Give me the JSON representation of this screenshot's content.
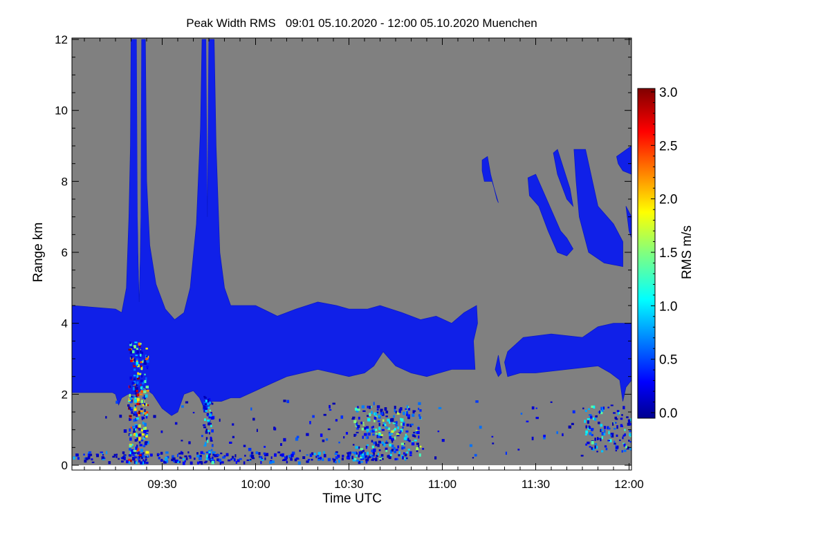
{
  "chart_data": {
    "type": "heatmap",
    "title": "Peak Width RMS   09:01 05.10.2020 - 12:00 05.10.2020 Muenchen",
    "xlabel": "Time UTC",
    "ylabel": "Range km",
    "x_units": "minutes after 09:00 UTC",
    "xlim": [
      1,
      180.8
    ],
    "ylim": [
      -0.15,
      12.05
    ],
    "data_ylim": [
      0,
      12
    ],
    "x_ticks": [
      {
        "value": 30,
        "label": "09:30"
      },
      {
        "value": 60,
        "label": "10:00"
      },
      {
        "value": 90,
        "label": "10:30"
      },
      {
        "value": 120,
        "label": "11:00"
      },
      {
        "value": 150,
        "label": "11:30"
      },
      {
        "value": 180,
        "label": "12:00"
      }
    ],
    "y_ticks": [
      {
        "value": 0,
        "label": "0"
      },
      {
        "value": 2,
        "label": "2"
      },
      {
        "value": 4,
        "label": "4"
      },
      {
        "value": 6,
        "label": "6"
      },
      {
        "value": 8,
        "label": "8"
      },
      {
        "value": 10,
        "label": "10"
      },
      {
        "value": 12,
        "label": "12"
      }
    ],
    "background_color": "#808080",
    "colorbar": {
      "label": "RMS m/s",
      "range": [
        0,
        3
      ],
      "colormap": "jet",
      "ticks": [
        {
          "value": 0.0,
          "label": "0.0"
        },
        {
          "value": 0.5,
          "label": "0.5"
        },
        {
          "value": 1.0,
          "label": "1.0"
        },
        {
          "value": 1.5,
          "label": "1.5"
        },
        {
          "value": 2.0,
          "label": "2.0"
        },
        {
          "value": 2.5,
          "label": "2.5"
        },
        {
          "value": 3.0,
          "label": "3.0"
        }
      ]
    },
    "regions": [
      {
        "name": "lower-cloud-layer",
        "value": 0.3,
        "points": [
          [
            1,
            2.05
          ],
          [
            1,
            4.5
          ],
          [
            15,
            4.4
          ],
          [
            17,
            4.3
          ],
          [
            18.5,
            5
          ],
          [
            19.3,
            7
          ],
          [
            19.8,
            9
          ],
          [
            20,
            12
          ],
          [
            21.8,
            12
          ],
          [
            22.2,
            6
          ],
          [
            22.6,
            4.6
          ],
          [
            23,
            6
          ],
          [
            23.3,
            12
          ],
          [
            24.6,
            12
          ],
          [
            25,
            8
          ],
          [
            26,
            6.2
          ],
          [
            28,
            5.1
          ],
          [
            31,
            4.4
          ],
          [
            34,
            4.1
          ],
          [
            37,
            4.3
          ],
          [
            39,
            5
          ],
          [
            41,
            6.8
          ],
          [
            42.3,
            9.5
          ],
          [
            42.8,
            12
          ],
          [
            44.2,
            12
          ],
          [
            44.5,
            7
          ],
          [
            44.8,
            12
          ],
          [
            46.7,
            12
          ],
          [
            47.3,
            9
          ],
          [
            48.5,
            6
          ],
          [
            50,
            5
          ],
          [
            52,
            4.5
          ],
          [
            60,
            4.5
          ],
          [
            67,
            4.2
          ],
          [
            73,
            4.4
          ],
          [
            80,
            4.6
          ],
          [
            86,
            4.5
          ],
          [
            90,
            4.4
          ],
          [
            96,
            4.4
          ],
          [
            100,
            4.5
          ],
          [
            107,
            4.3
          ],
          [
            113,
            4.1
          ],
          [
            118,
            4.2
          ],
          [
            123,
            4.0
          ],
          [
            127,
            4.3
          ],
          [
            131,
            4.5
          ],
          [
            131.3,
            4.0
          ],
          [
            130,
            3.5
          ],
          [
            130.5,
            2.7
          ],
          [
            123,
            2.7
          ],
          [
            115,
            2.5
          ],
          [
            110,
            2.6
          ],
          [
            105,
            2.8
          ],
          [
            101,
            3.2
          ],
          [
            98,
            2.8
          ],
          [
            95,
            2.6
          ],
          [
            90,
            2.5
          ],
          [
            85,
            2.6
          ],
          [
            80,
            2.7
          ],
          [
            75,
            2.6
          ],
          [
            70,
            2.5
          ],
          [
            65,
            2.3
          ],
          [
            60,
            2.1
          ],
          [
            55,
            1.9
          ],
          [
            52,
            1.9
          ],
          [
            49,
            1.8
          ],
          [
            46,
            1.8
          ],
          [
            44,
            1.5
          ],
          [
            42,
            1.9
          ],
          [
            40,
            2.1
          ],
          [
            37,
            2.0
          ],
          [
            35,
            1.5
          ],
          [
            33,
            1.4
          ],
          [
            30,
            1.6
          ],
          [
            27,
            2.0
          ],
          [
            24,
            2.2
          ],
          [
            22,
            2.0
          ],
          [
            19,
            2.0
          ],
          [
            17,
            1.9
          ],
          [
            16,
            1.7
          ],
          [
            15,
            2.0
          ],
          [
            14,
            2.05
          ]
        ]
      },
      {
        "name": "gap-between-spikes-1",
        "value": null,
        "points": [
          [
            21.8,
            12.1
          ],
          [
            22.1,
            7
          ],
          [
            22.6,
            4.8
          ],
          [
            23.1,
            7
          ],
          [
            23.3,
            12.1
          ]
        ]
      },
      {
        "name": "gap-inside-u",
        "value": null,
        "points": [
          [
            25,
            12.1
          ],
          [
            25.6,
            8
          ],
          [
            26.6,
            6.2
          ],
          [
            28.5,
            5.1
          ],
          [
            31,
            4.5
          ],
          [
            34,
            4.25
          ],
          [
            37,
            4.45
          ],
          [
            38.8,
            5.2
          ],
          [
            40.6,
            6.9
          ],
          [
            41.9,
            9.5
          ],
          [
            42.4,
            12.1
          ]
        ]
      },
      {
        "name": "gap-between-spikes-2",
        "value": null,
        "points": [
          [
            44.1,
            12.1
          ],
          [
            44.5,
            7.5
          ],
          [
            44.9,
            12.1
          ]
        ]
      },
      {
        "name": "right-cloud-layer",
        "value": 0.3,
        "points": [
          [
            140,
            2.9
          ],
          [
            141,
            3.2
          ],
          [
            146,
            3.6
          ],
          [
            155,
            3.7
          ],
          [
            165,
            3.6
          ],
          [
            170,
            3.9
          ],
          [
            175,
            4.0
          ],
          [
            180.8,
            4.0
          ],
          [
            180.8,
            2.4
          ],
          [
            179,
            2.2
          ],
          [
            178,
            1.8
          ],
          [
            177,
            2.4
          ],
          [
            174,
            2.6
          ],
          [
            170,
            2.8
          ],
          [
            160,
            2.7
          ],
          [
            150,
            2.6
          ],
          [
            145,
            2.6
          ],
          [
            141,
            2.5
          ]
        ]
      },
      {
        "name": "small-blob",
        "value": 0.3,
        "points": [
          [
            137,
            2.7
          ],
          [
            138,
            3.1
          ],
          [
            139,
            2.6
          ],
          [
            138,
            2.5
          ]
        ]
      },
      {
        "name": "upper-cloud-1",
        "value": 0.25,
        "points": [
          [
            132.8,
            8.6
          ],
          [
            134.5,
            8.7
          ],
          [
            135.5,
            8.2
          ],
          [
            137.5,
            7.5
          ],
          [
            138,
            7.4
          ],
          [
            136,
            8.0
          ],
          [
            133.5,
            8.0
          ],
          [
            132.8,
            8.3
          ]
        ]
      },
      {
        "name": "upper-cloud-2",
        "value": 0.25,
        "points": [
          [
            147.5,
            8.1
          ],
          [
            150,
            8.2
          ],
          [
            155,
            7.2
          ],
          [
            158,
            6.6
          ],
          [
            160,
            6.4
          ],
          [
            162,
            6.1
          ],
          [
            160,
            5.9
          ],
          [
            157,
            6.0
          ],
          [
            154,
            6.6
          ],
          [
            151,
            7.3
          ],
          [
            148,
            7.6
          ]
        ]
      },
      {
        "name": "upper-cloud-3",
        "value": 0.25,
        "points": [
          [
            155.7,
            8.8
          ],
          [
            157,
            8.9
          ],
          [
            161,
            7.8
          ],
          [
            162,
            7.3
          ],
          [
            160,
            7.5
          ],
          [
            157,
            8.2
          ]
        ]
      },
      {
        "name": "upper-cloud-4",
        "value": 0.25,
        "points": [
          [
            162.3,
            8.9
          ],
          [
            166,
            8.9
          ],
          [
            170,
            7.3
          ],
          [
            175,
            6.8
          ],
          [
            178,
            6.3
          ],
          [
            178,
            5.6
          ],
          [
            172,
            5.7
          ],
          [
            167,
            6.0
          ],
          [
            164,
            7.0
          ],
          [
            163,
            8.0
          ]
        ]
      },
      {
        "name": "upper-cloud-5",
        "value": 0.25,
        "points": [
          [
            176,
            8.7
          ],
          [
            180.8,
            9.0
          ],
          [
            180.8,
            8.2
          ],
          [
            178,
            8.3
          ],
          [
            176.5,
            8.5
          ]
        ]
      },
      {
        "name": "upper-cloud-6",
        "value": 0.25,
        "points": [
          [
            179,
            7.3
          ],
          [
            180.8,
            7.0
          ],
          [
            180.8,
            6.4
          ],
          [
            180,
            6.6
          ]
        ]
      }
    ],
    "speckle_regions": [
      {
        "name": "near-surface-speckle",
        "t": [
          1,
          100
        ],
        "km": [
          0.1,
          0.4
        ],
        "count": 260,
        "vmax": 0.8
      },
      {
        "name": "spike-column-speckle",
        "t": [
          19,
          25
        ],
        "km": [
          0.1,
          3.5
        ],
        "count": 260,
        "vmax": 3.0
      },
      {
        "name": "spike-column-speckle-2",
        "t": [
          43,
          46
        ],
        "km": [
          0.1,
          2.0
        ],
        "count": 70,
        "vmax": 1.2
      },
      {
        "name": "convective-speckle",
        "t": [
          91,
          113
        ],
        "km": [
          0.2,
          1.7
        ],
        "count": 230,
        "vmax": 1.6
      },
      {
        "name": "right-low-speckle",
        "t": [
          165,
          180.8
        ],
        "km": [
          0.4,
          1.7
        ],
        "count": 110,
        "vmax": 1.3
      },
      {
        "name": "scattered-speckle",
        "t": [
          10,
          180
        ],
        "km": [
          0.2,
          1.9
        ],
        "count": 120,
        "vmax": 0.6
      }
    ]
  }
}
